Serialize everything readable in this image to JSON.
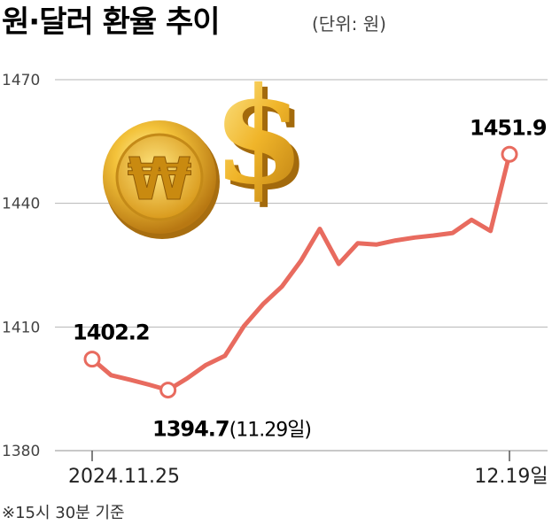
{
  "chart_data": {
    "type": "line",
    "title": "원·달러 환율 추이",
    "unit": "(단위: 원)",
    "ylim": [
      1380,
      1470
    ],
    "yticks": [
      "1470",
      "1440",
      "1410",
      "1380"
    ],
    "x_labels": {
      "start": "2024.11.25",
      "end": "12.19일"
    },
    "series": [
      {
        "values": [
          1402.2,
          1398.3,
          1397.2,
          1396.0,
          1394.7,
          1397.5,
          1400.8,
          1403.0,
          1410.2,
          1415.5,
          1419.8,
          1426.0,
          1433.8,
          1425.3,
          1430.3,
          1430.0,
          1431.0,
          1431.7,
          1432.2,
          1432.8,
          1436.0,
          1433.3,
          1451.9
        ]
      }
    ],
    "annotations": {
      "start": "1402.2",
      "min_value": "1394.7",
      "min_date": "(11.29일)",
      "end": "1451.9"
    },
    "line_color": "#e86b5f",
    "grid_color": "#b5b5b5"
  },
  "footnote": "※15시 30분 기준",
  "decor": {
    "coin_symbol": "₩",
    "dollar_symbol": "$"
  }
}
